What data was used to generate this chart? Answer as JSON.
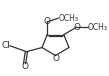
{
  "background_color": "#ffffff",
  "line_color": "#333333",
  "text_color": "#333333",
  "font_size": 6.5,
  "figsize": [
    1.09,
    0.76
  ],
  "dpi": 100,
  "xlim": [
    0.0,
    1.0
  ],
  "ylim": [
    0.0,
    1.0
  ]
}
